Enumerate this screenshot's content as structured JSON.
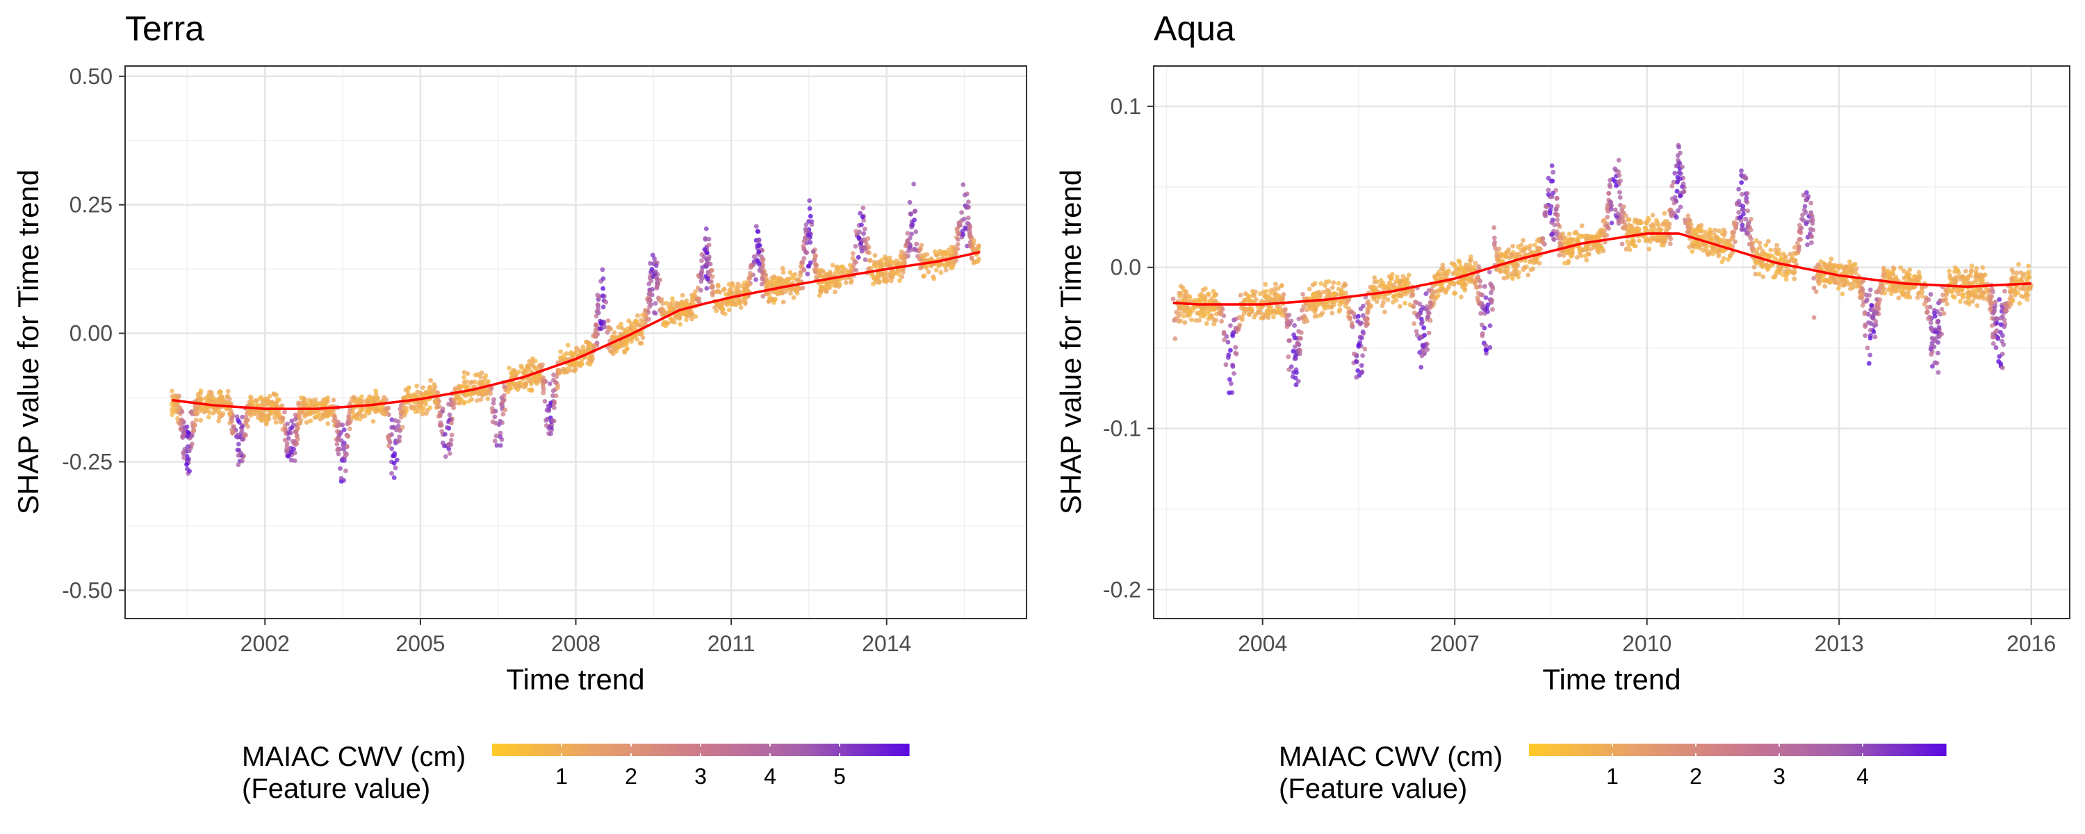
{
  "chart_data": [
    {
      "type": "scatter",
      "title": "Terra",
      "xlabel": "Time trend",
      "ylabel": "SHAP value for Time trend",
      "xlim": [
        1999.3,
        2016.7
      ],
      "ylim": [
        -0.555,
        0.52
      ],
      "xticks": [
        2002,
        2005,
        2008,
        2011,
        2014
      ],
      "xtick_labels": [
        "2002",
        "2005",
        "2008",
        "2011",
        "2014"
      ],
      "yticks": [
        -0.5,
        -0.25,
        0,
        0.25,
        0.5
      ],
      "ytick_labels": [
        "-0.50",
        "-0.25",
        "0.00",
        "0.25",
        "0.50"
      ],
      "grid": true,
      "data_range": [
        2000.2,
        2015.8
      ],
      "trend": {
        "name": "smooth fit",
        "color": "#ff0000",
        "x": [
          2000.2,
          2001,
          2002,
          2003,
          2004,
          2005,
          2006,
          2007,
          2008,
          2009,
          2010,
          2010.5,
          2011,
          2012,
          2013,
          2014,
          2015,
          2015.8
        ],
        "y": [
          -0.13,
          -0.14,
          -0.147,
          -0.147,
          -0.14,
          -0.128,
          -0.11,
          -0.085,
          -0.05,
          -0.005,
          0.045,
          0.058,
          0.07,
          0.09,
          0.108,
          0.125,
          0.14,
          0.158
        ]
      },
      "seasonal_amp": 0.08,
      "seasonal_sign": [
        -1,
        -1,
        -1,
        -1,
        -1,
        -1,
        -1,
        -1,
        1,
        1,
        1,
        1,
        1,
        1,
        1,
        1,
        1
      ],
      "legend": {
        "title_lines": [
          "MAIAC CWV (cm)",
          "(Feature value)"
        ],
        "placement": "bottom",
        "range": [
          0,
          6
        ],
        "ticks": [
          1,
          2,
          3,
          4,
          5
        ],
        "tick_labels": [
          "1",
          "2",
          "3",
          "4",
          "5"
        ],
        "colors": [
          "#FFC92B",
          "#E7A06A",
          "#CC7A8C",
          "#A45EAD",
          "#5A0CDF"
        ]
      }
    },
    {
      "type": "scatter",
      "title": "Aqua",
      "xlabel": "Time trend",
      "ylabel": "SHAP value for Time trend",
      "xlim": [
        2002.3,
        2016.6
      ],
      "ylim": [
        -0.218,
        0.125
      ],
      "xticks": [
        2004,
        2007,
        2010,
        2013,
        2016
      ],
      "xtick_labels": [
        "2004",
        "2007",
        "2010",
        "2013",
        "2016"
      ],
      "yticks": [
        -0.2,
        -0.1,
        0,
        0.1
      ],
      "ytick_labels": [
        "-0.2",
        "-0.1",
        "0.0",
        "0.1"
      ],
      "grid": true,
      "data_range": [
        2002.6,
        2016.0
      ],
      "trend": {
        "name": "smooth fit",
        "color": "#ff0000",
        "x": [
          2002.6,
          2003,
          2004,
          2005,
          2006,
          2007,
          2008,
          2009,
          2010,
          2010.5,
          2011,
          2012,
          2013,
          2014,
          2015,
          2016
        ],
        "y": [
          -0.022,
          -0.023,
          -0.023,
          -0.02,
          -0.015,
          -0.007,
          0.005,
          0.015,
          0.021,
          0.021,
          0.015,
          0.003,
          -0.005,
          -0.01,
          -0.012,
          -0.01
        ],
        "note": ""
      },
      "seasonal_amp": 0.03,
      "seasonal_sign": [
        -1,
        -1,
        -1,
        -1,
        -1,
        1,
        1,
        1,
        1,
        1,
        -1,
        -1,
        -1,
        -1
      ],
      "legend": {
        "title_lines": [
          "MAIAC CWV (cm)",
          "(Feature value)"
        ],
        "placement": "bottom",
        "range": [
          0,
          5
        ],
        "ticks": [
          1,
          2,
          3,
          4
        ],
        "tick_labels": [
          "1",
          "2",
          "3",
          "4"
        ],
        "colors": [
          "#FFC92B",
          "#E7A06A",
          "#CC7A8C",
          "#A45EAD",
          "#5A0CDF"
        ]
      }
    }
  ]
}
